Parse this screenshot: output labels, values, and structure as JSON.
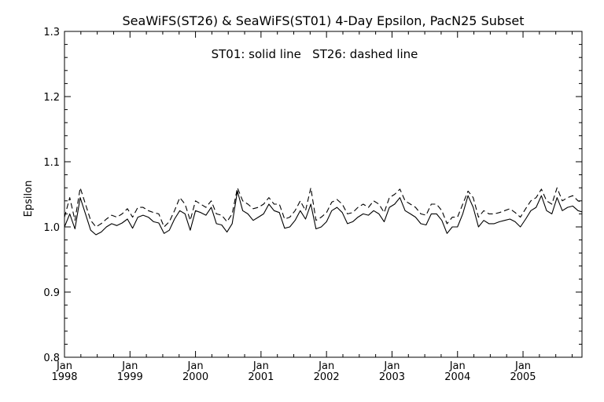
{
  "chart_data": {
    "type": "line",
    "title": "SeaWiFS(ST26) & SeaWiFS(ST01) 4-Day Epsilon, PacN25 Subset",
    "annotation": "ST01: solid line   ST26: dashed line",
    "xlabel": "",
    "ylabel": "Epsilon",
    "ylim": [
      0.8,
      1.3
    ],
    "yticks": [
      "0.8",
      "0.9",
      "1.0",
      "1.1",
      "1.2",
      "1.3"
    ],
    "xlim": [
      1998.0,
      2005.9
    ],
    "xticks": [
      {
        "month": "Jan",
        "year": "1998"
      },
      {
        "month": "Jan",
        "year": "1999"
      },
      {
        "month": "Jan",
        "year": "2000"
      },
      {
        "month": "Jan",
        "year": "2001"
      },
      {
        "month": "Jan",
        "year": "2002"
      },
      {
        "month": "Jan",
        "year": "2003"
      },
      {
        "month": "Jan",
        "year": "2004"
      },
      {
        "month": "Jan",
        "year": "2005"
      }
    ],
    "x": [
      1998.0,
      1998.08,
      1998.16,
      1998.24,
      1998.32,
      1998.4,
      1998.48,
      1998.56,
      1998.64,
      1998.72,
      1998.8,
      1998.88,
      1998.96,
      1999.04,
      1999.12,
      1999.2,
      1999.28,
      1999.36,
      1999.44,
      1999.52,
      1999.6,
      1999.68,
      1999.76,
      1999.84,
      1999.92,
      2000.0,
      2000.08,
      2000.16,
      2000.24,
      2000.32,
      2000.4,
      2000.48,
      2000.56,
      2000.64,
      2000.72,
      2000.8,
      2000.88,
      2000.96,
      2001.04,
      2001.12,
      2001.2,
      2001.28,
      2001.36,
      2001.44,
      2001.52,
      2001.6,
      2001.68,
      2001.76,
      2001.84,
      2001.92,
      2002.0,
      2002.08,
      2002.16,
      2002.24,
      2002.32,
      2002.4,
      2002.48,
      2002.56,
      2002.64,
      2002.72,
      2002.8,
      2002.88,
      2002.96,
      2003.04,
      2003.12,
      2003.2,
      2003.28,
      2003.36,
      2003.44,
      2003.52,
      2003.6,
      2003.68,
      2003.76,
      2003.84,
      2003.92,
      2004.0,
      2004.08,
      2004.16,
      2004.24,
      2004.32,
      2004.4,
      2004.48,
      2004.56,
      2004.64,
      2004.72,
      2004.8,
      2004.88,
      2004.96,
      2005.04,
      2005.12,
      2005.2,
      2005.28,
      2005.36,
      2005.44,
      2005.52,
      2005.6,
      2005.68,
      2005.76,
      2005.84,
      2005.9
    ],
    "series": [
      {
        "name": "ST01",
        "values": [
          1.0,
          1.02,
          0.997,
          1.045,
          1.02,
          0.995,
          0.988,
          0.992,
          1.0,
          1.005,
          1.002,
          1.006,
          1.012,
          0.998,
          1.015,
          1.018,
          1.015,
          1.008,
          1.006,
          0.99,
          0.995,
          1.012,
          1.025,
          1.02,
          0.995,
          1.025,
          1.022,
          1.018,
          1.03,
          1.005,
          1.003,
          0.992,
          1.005,
          1.055,
          1.025,
          1.02,
          1.01,
          1.015,
          1.02,
          1.035,
          1.025,
          1.022,
          0.998,
          1.0,
          1.01,
          1.025,
          1.012,
          1.035,
          0.997,
          1.0,
          1.008,
          1.025,
          1.03,
          1.022,
          1.005,
          1.008,
          1.015,
          1.02,
          1.018,
          1.025,
          1.02,
          1.008,
          1.03,
          1.035,
          1.045,
          1.025,
          1.02,
          1.015,
          1.005,
          1.003,
          1.02,
          1.02,
          1.01,
          0.99,
          1.0,
          1.0,
          1.02,
          1.048,
          1.03,
          1.0,
          1.01,
          1.005,
          1.005,
          1.008,
          1.01,
          1.012,
          1.008,
          1.0,
          1.012,
          1.025,
          1.03,
          1.048,
          1.025,
          1.02,
          1.045,
          1.025,
          1.03,
          1.032,
          1.025,
          1.023
        ]
      },
      {
        "name": "ST26",
        "values": [
          1.015,
          1.045,
          1.01,
          1.06,
          1.035,
          1.01,
          1.0,
          1.005,
          1.012,
          1.018,
          1.015,
          1.02,
          1.028,
          1.015,
          1.03,
          1.03,
          1.025,
          1.022,
          1.02,
          1.0,
          1.008,
          1.025,
          1.045,
          1.035,
          1.01,
          1.04,
          1.035,
          1.03,
          1.04,
          1.02,
          1.018,
          1.008,
          1.02,
          1.06,
          1.04,
          1.035,
          1.028,
          1.03,
          1.035,
          1.045,
          1.035,
          1.035,
          1.012,
          1.015,
          1.025,
          1.04,
          1.025,
          1.06,
          1.01,
          1.015,
          1.022,
          1.038,
          1.042,
          1.035,
          1.02,
          1.022,
          1.03,
          1.035,
          1.03,
          1.04,
          1.035,
          1.022,
          1.045,
          1.05,
          1.058,
          1.04,
          1.035,
          1.03,
          1.02,
          1.018,
          1.035,
          1.035,
          1.025,
          1.005,
          1.015,
          1.015,
          1.035,
          1.055,
          1.045,
          1.015,
          1.025,
          1.02,
          1.02,
          1.022,
          1.025,
          1.028,
          1.022,
          1.015,
          1.028,
          1.04,
          1.045,
          1.058,
          1.04,
          1.035,
          1.06,
          1.04,
          1.045,
          1.048,
          1.04,
          1.038
        ]
      }
    ],
    "colors": {
      "line": "#000000",
      "background": "#ffffff"
    }
  }
}
